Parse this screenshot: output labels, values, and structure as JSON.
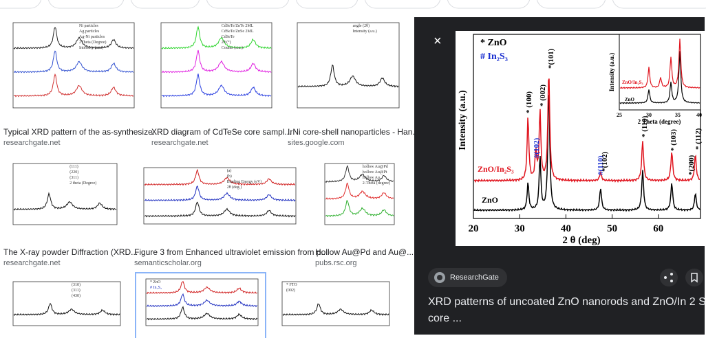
{
  "results": [
    {
      "caption": "Typical XRD pattern of the as-synthesize...",
      "source": "researchgate.net",
      "texts": [
        "Ni particles",
        "Ag particles",
        "Ag-Ni particles",
        "2Theta (Degree)",
        "Intensity (a.u.)"
      ]
    },
    {
      "caption": "XRD diagram of CdTeSe core sampl...",
      "source": "researchgate.net",
      "texts": [
        "CdSeTe/ZnTe 2ML",
        "CdSeTe/ZnSe 2ML",
        "CdSeTe",
        "2θ (°)",
        "Counts (a.u.)"
      ]
    },
    {
      "caption": "IrNi core-shell nanoparticles - Han...",
      "source": "sites.google.com",
      "texts": [
        "angle (2θ)",
        "Intensity (a.u.)"
      ]
    },
    {
      "caption": "The X-ray powder Diffraction (XRD...",
      "source": "researchgate.net",
      "texts": [
        "(111)",
        "(220)",
        "(311)",
        "2 theta (Degree)"
      ]
    },
    {
      "caption": "Figure 3 from Enhanced ultraviolet emission from p...",
      "source": "semanticscholar.org",
      "texts": [
        "(a)",
        "(b)",
        "Binding Energy (eV)",
        "2θ (deg.)"
      ]
    },
    {
      "caption": "Hollow Au@Pd and Au@...",
      "source": "pubs.rsc.org",
      "texts": [
        "hollow Au@Pd",
        "hollow Au@Pt",
        "hollow Au",
        "2-Theta (degree)"
      ]
    },
    {
      "texts": [
        "(310)",
        "(311)",
        "(430)"
      ]
    },
    {
      "texts": [
        "* ZnO",
        "# In₂S₃"
      ]
    },
    {
      "texts": [
        "* FTO",
        "(002)"
      ]
    }
  ],
  "preview": {
    "close": "×",
    "legend": [
      "* ZnO",
      "# In₂S₃"
    ],
    "ylabel": "Intensity (a.u.)",
    "xlabel": "2 θ (deg)",
    "xticks": [
      20,
      30,
      40,
      50,
      60
    ],
    "peaks": [
      "* (100)",
      "* (002)",
      "*(101)",
      "#(102)",
      "#(110)",
      "*(102)",
      "* (110)",
      "* (103)",
      "*(200)",
      "* (112)"
    ],
    "series": [
      "ZnO/In₂S₃",
      "ZnO"
    ],
    "inset": {
      "ylabel": "Intensity (a.u.)",
      "xlabel": "2 Theta (degree)",
      "xticks": [
        25,
        30,
        35,
        40
      ],
      "series": [
        "ZnO/In₂S₃",
        "ZnO"
      ]
    },
    "source": "ResearchGate",
    "title_lines": [
      "XRD patterns of uncoated ZnO nanorods and ZnO/In 2 S",
      "core ..."
    ]
  }
}
